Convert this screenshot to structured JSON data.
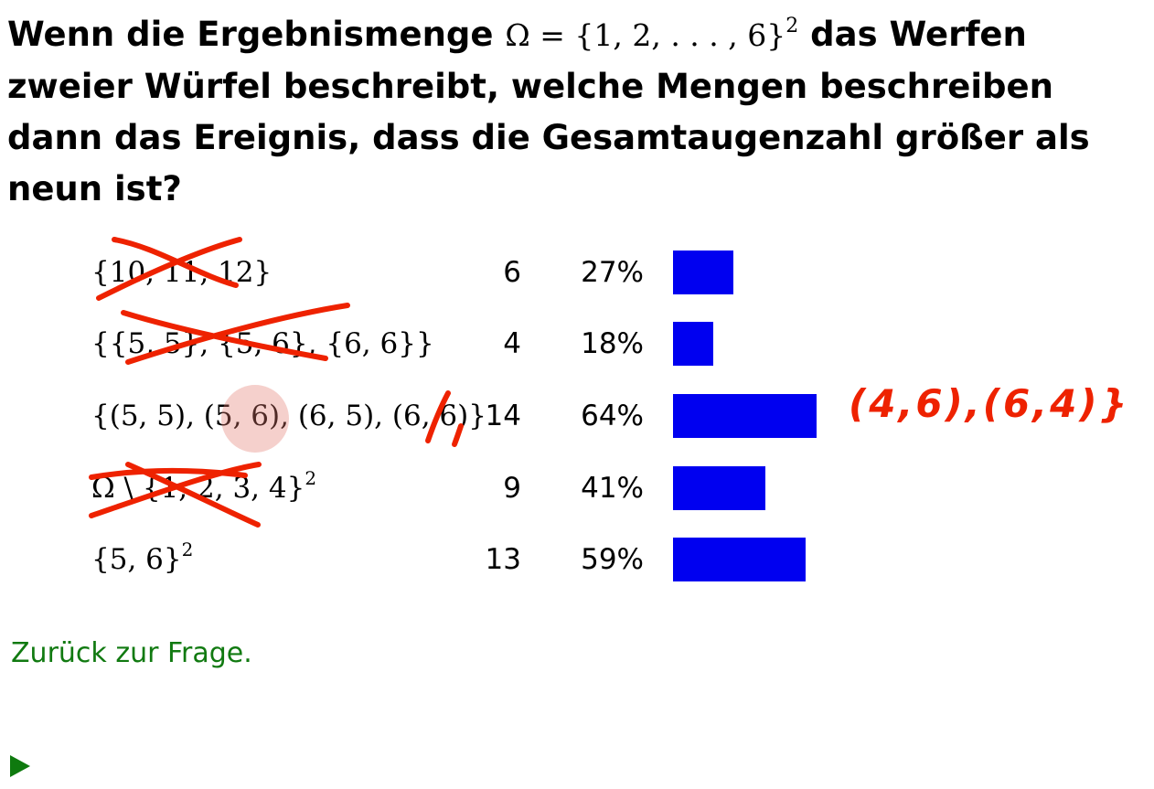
{
  "question": {
    "text_before": "Wenn die Ergebnismenge",
    "math": "Ω = {1, 2, . . . , 6}",
    "math_sup": "2",
    "text_after": "das Werfen zweier Würfel beschreibt, welche Mengen beschreiben dann das Ereignis, dass die Gesamtaugenzahl größer als neun ist?"
  },
  "results": [
    {
      "option": "{10, 11, 12}",
      "option_sup": "",
      "count": "6",
      "percent": "27%",
      "fraction": 0.27
    },
    {
      "option": "{{5, 5}, {5, 6}, {6, 6}}",
      "option_sup": "",
      "count": "4",
      "percent": "18%",
      "fraction": 0.18
    },
    {
      "option": "{(5, 5), (5, 6), (6, 5), (6, 6)}",
      "option_sup": "",
      "count": "14",
      "percent": "64%",
      "fraction": 0.64
    },
    {
      "option": "Ω \\ {1, 2, 3, 4}",
      "option_sup": "2",
      "count": "9",
      "percent": "41%",
      "fraction": 0.41
    },
    {
      "option": "{5, 6}",
      "option_sup": "2",
      "count": "13",
      "percent": "59%",
      "fraction": 0.59
    }
  ],
  "annotation": {
    "handwritten_text": "(4,6),(6,4)}",
    "color": "#ee2200"
  },
  "back_link": "Zurück zur Frage.",
  "play_icon": "play-triangle-icon",
  "bar_color": "#0000f0"
}
